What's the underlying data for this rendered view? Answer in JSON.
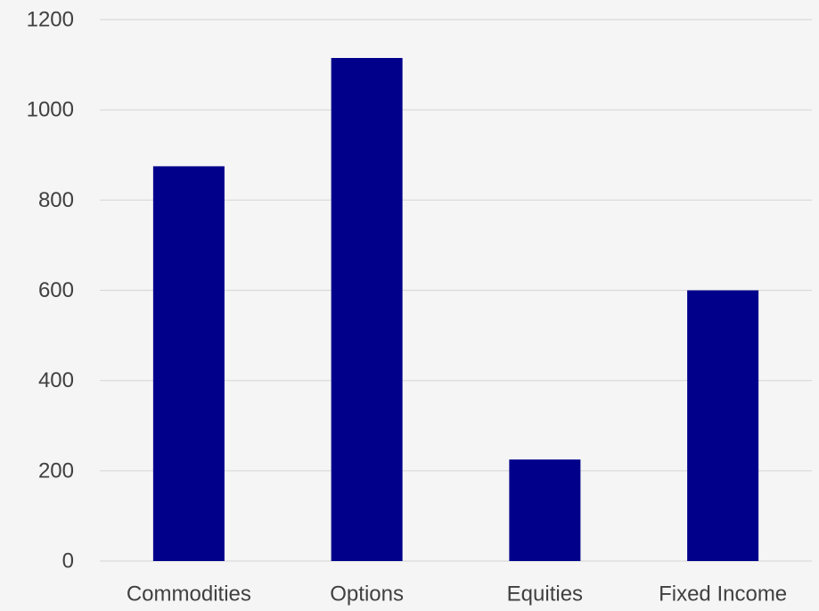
{
  "chart_data": {
    "type": "bar",
    "title": "",
    "xlabel": "",
    "ylabel": "",
    "categories": [
      "Commodities",
      "Options",
      "Equities",
      "Fixed Income"
    ],
    "values": [
      875,
      1115,
      225,
      600
    ],
    "ylim": [
      0,
      1200
    ],
    "yticks": [
      0,
      200,
      400,
      600,
      800,
      1000,
      1200
    ],
    "grid": true,
    "legend": "none",
    "colors": {
      "bar": "#00008b",
      "grid": "#d9d9d9",
      "text": "#404040",
      "background": "#f5f5f5"
    }
  }
}
